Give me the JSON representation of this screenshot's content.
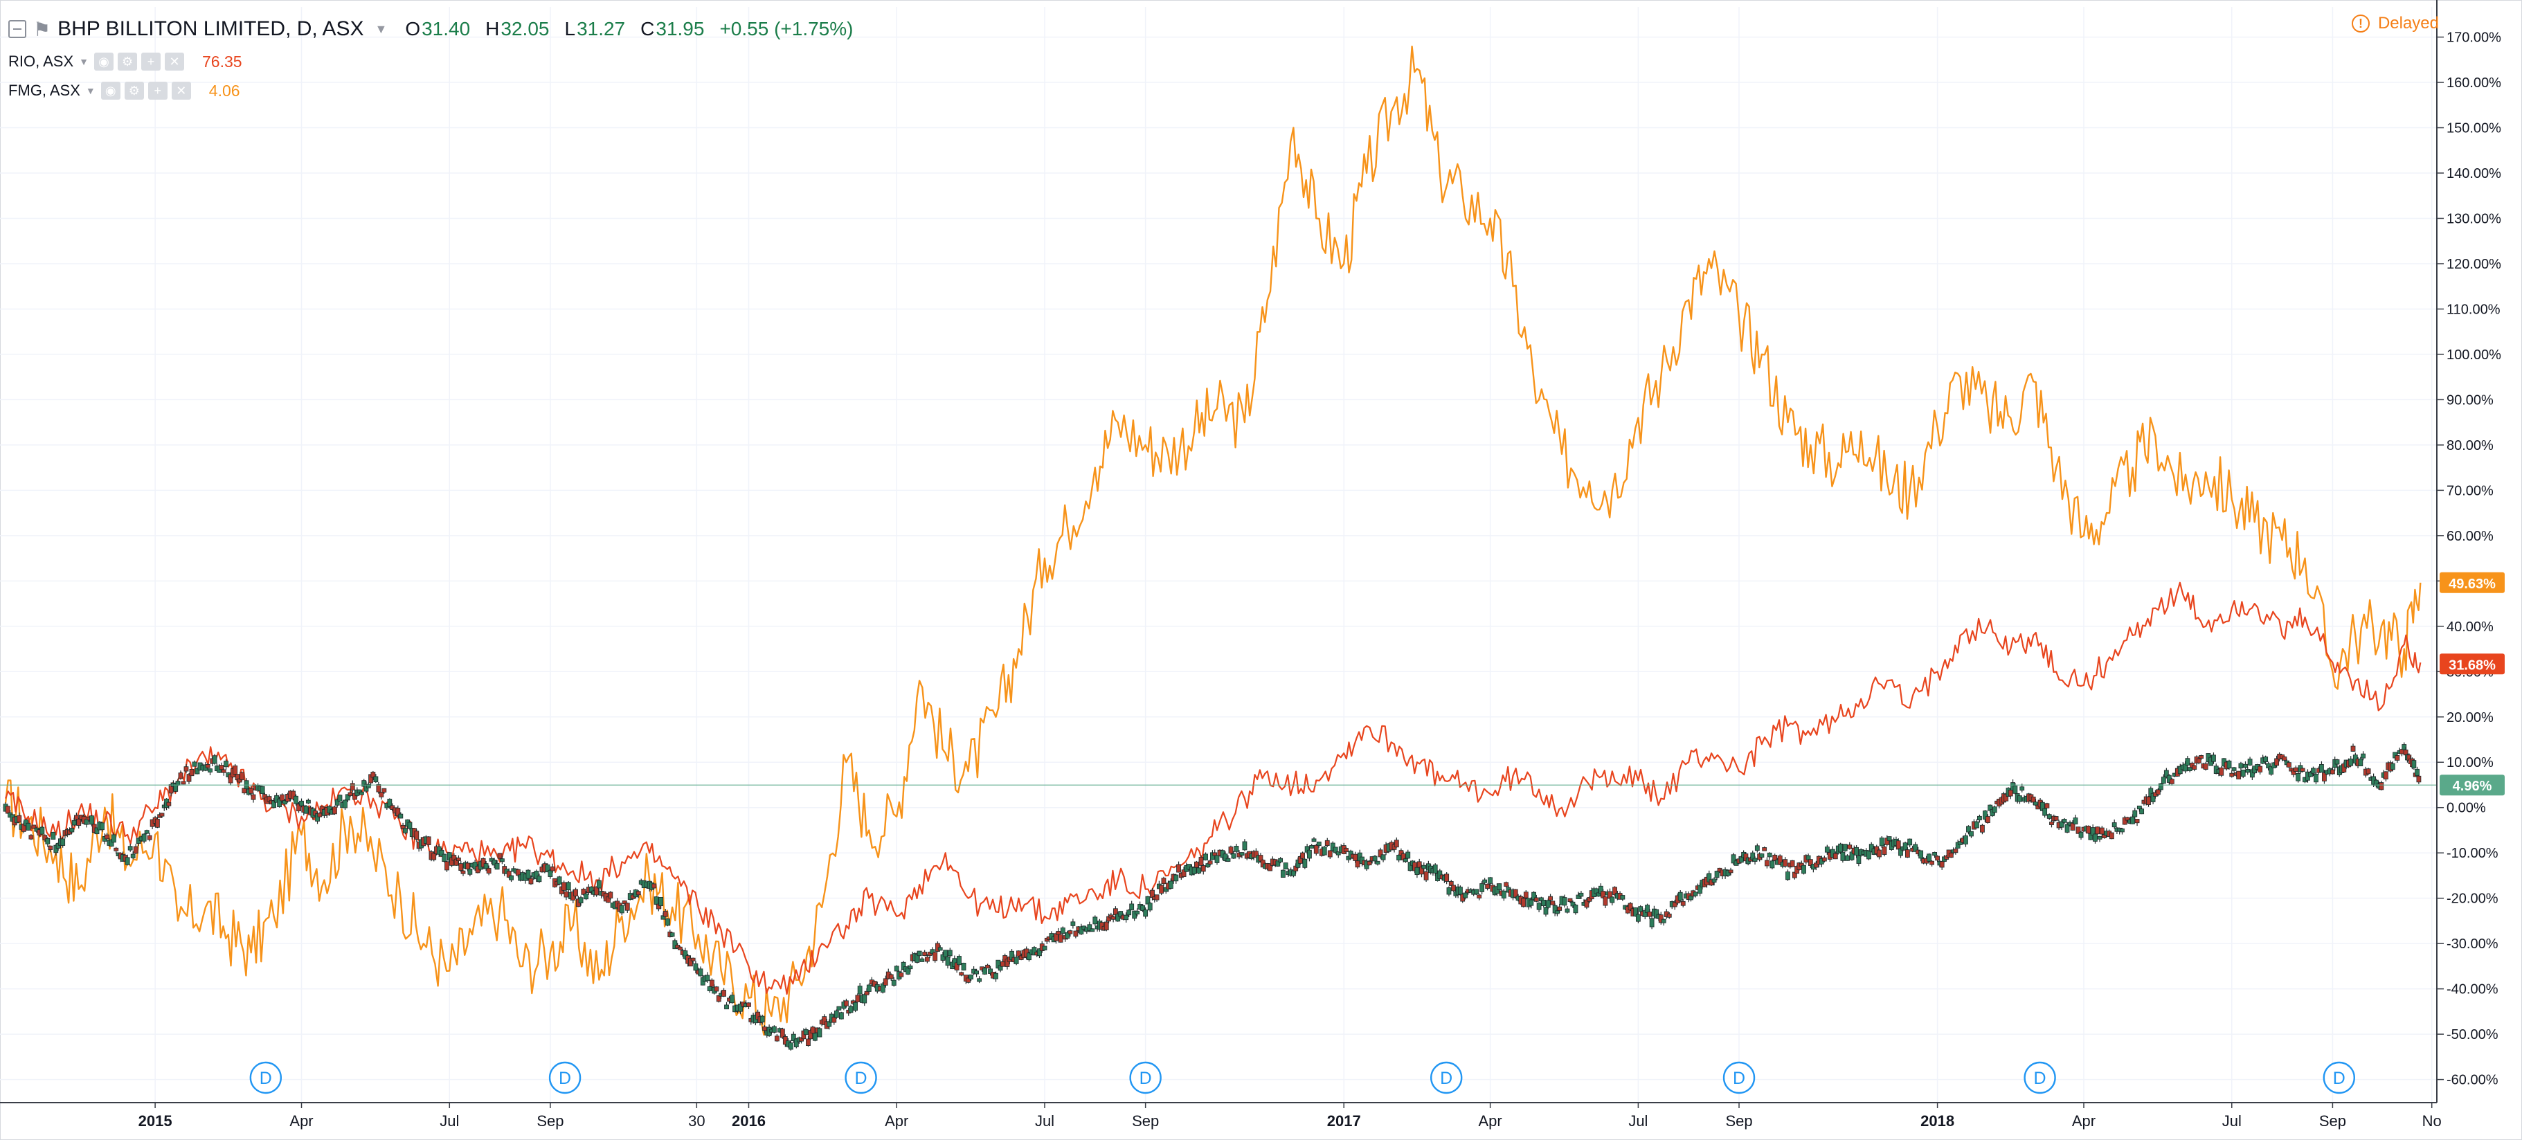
{
  "header": {
    "symbol_title": "BHP BILLITON LIMITED, D, ASX",
    "ohlc": [
      {
        "key": "O",
        "value": "31.40"
      },
      {
        "key": "H",
        "value": "32.05"
      },
      {
        "key": "L",
        "value": "31.27"
      },
      {
        "key": "C",
        "value": "31.95"
      }
    ],
    "change": "+0.55 (+1.75%)"
  },
  "compare": [
    {
      "symbol": "RIO, ASX",
      "last": "76.35",
      "color": "#e8451e"
    },
    {
      "symbol": "FMG, ASX",
      "last": "4.06",
      "color": "#f7931a"
    }
  ],
  "status": {
    "delayed_label": "Delayed",
    "icon": "info-circle-icon"
  },
  "icons": {
    "collapse": "minus-square-icon",
    "flag": "flag-icon",
    "caret": "caret-down-icon"
  },
  "colors": {
    "up": "#2e7d5b",
    "down": "#b23a2d",
    "rio": "#e8451e",
    "fmg": "#f7931a",
    "baseline": "#5aa98a",
    "dividend": "#2196f3"
  },
  "chart_data": {
    "type": "line",
    "title": "BHP BILLITON LIMITED, D, ASX",
    "y_unit": "percent change",
    "y_range": [
      -65,
      175
    ],
    "y_ticks": [
      "170.00%",
      "160.00%",
      "150.00%",
      "140.00%",
      "130.00%",
      "120.00%",
      "110.00%",
      "100.00%",
      "90.00%",
      "80.00%",
      "70.00%",
      "60.00%",
      "50.00%",
      "40.00%",
      "30.00%",
      "20.00%",
      "10.00%",
      "0.00%",
      "-10.00%",
      "-20.00%",
      "-30.00%",
      "-40.00%",
      "-50.00%",
      "-60.00%"
    ],
    "x_ticks": [
      "2015",
      "Apr",
      "Jul",
      "Sep",
      "30",
      "2016",
      "Apr",
      "Jul",
      "Sep",
      "2017",
      "Apr",
      "Jul",
      "Sep",
      "2018",
      "Apr",
      "Jul",
      "Sep",
      "No"
    ],
    "grid": true,
    "legend_position": "top-left",
    "last_value_labels": [
      {
        "text": "49.63%",
        "value": 49.63,
        "color": "#f7931a"
      },
      {
        "text": "31.68%",
        "value": 31.68,
        "color": "#e8451e"
      },
      {
        "text": "4.96%",
        "value": 4.96,
        "color": "#5aa98a"
      }
    ],
    "dividend_marker_label": "D",
    "dividend_markers_x": [
      "2015-03-10",
      "2015-09-10",
      "2016-03-10",
      "2016-09-01",
      "2017-03-05",
      "2017-09-01",
      "2018-03-05",
      "2018-09-05"
    ],
    "series": [
      {
        "name": "BHP BILLITON LIMITED",
        "style": "candles",
        "x": [
          "2014-10-01",
          "2014-10-15",
          "2014-11-01",
          "2014-11-15",
          "2014-12-01",
          "2014-12-15",
          "2015-01-01",
          "2015-01-15",
          "2015-02-01",
          "2015-02-15",
          "2015-03-01",
          "2015-03-15",
          "2015-04-01",
          "2015-04-15",
          "2015-05-01",
          "2015-05-15",
          "2015-06-01",
          "2015-06-15",
          "2015-07-01",
          "2015-07-15",
          "2015-08-01",
          "2015-08-15",
          "2015-09-01",
          "2015-09-15",
          "2015-10-01",
          "2015-10-15",
          "2015-11-01",
          "2015-11-15",
          "2015-12-01",
          "2015-12-15",
          "2016-01-01",
          "2016-01-15",
          "2016-02-01",
          "2016-02-15",
          "2016-03-01",
          "2016-03-15",
          "2016-04-01",
          "2016-04-15",
          "2016-05-01",
          "2016-05-15",
          "2016-06-01",
          "2016-06-15",
          "2016-07-01",
          "2016-07-15",
          "2016-08-01",
          "2016-08-15",
          "2016-09-01",
          "2016-09-15",
          "2016-10-01",
          "2016-10-15",
          "2016-11-01",
          "2016-11-15",
          "2016-12-01",
          "2016-12-15",
          "2017-01-01",
          "2017-01-15",
          "2017-02-01",
          "2017-02-15",
          "2017-03-01",
          "2017-03-15",
          "2017-04-01",
          "2017-04-15",
          "2017-05-01",
          "2017-05-15",
          "2017-06-01",
          "2017-06-15",
          "2017-07-01",
          "2017-07-15",
          "2017-08-01",
          "2017-08-15",
          "2017-09-01",
          "2017-09-15",
          "2017-10-01",
          "2017-10-15",
          "2017-11-01",
          "2017-11-15",
          "2017-12-01",
          "2017-12-15",
          "2018-01-01",
          "2018-01-15",
          "2018-02-01",
          "2018-02-15",
          "2018-03-01",
          "2018-03-15",
          "2018-04-01",
          "2018-04-15",
          "2018-05-01",
          "2018-05-15",
          "2018-06-01",
          "2018-06-15",
          "2018-07-01",
          "2018-07-15",
          "2018-08-01",
          "2018-08-15",
          "2018-09-01",
          "2018-09-15",
          "2018-10-01",
          "2018-10-15",
          "2018-10-25"
        ],
        "values": [
          0,
          -5,
          -8,
          -2,
          -6,
          -11,
          -4,
          6,
          10,
          8,
          4,
          2,
          1,
          -2,
          3,
          6,
          -3,
          -8,
          -12,
          -14,
          -12,
          -16,
          -14,
          -20,
          -18,
          -22,
          -16,
          -28,
          -36,
          -42,
          -45,
          -50,
          -52,
          -48,
          -44,
          -40,
          -37,
          -33,
          -32,
          -37,
          -36,
          -33,
          -31,
          -27,
          -26,
          -24,
          -22,
          -16,
          -13,
          -11,
          -9,
          -12,
          -14,
          -8,
          -10,
          -12,
          -9,
          -13,
          -15,
          -20,
          -17,
          -19,
          -21,
          -22,
          -20,
          -19,
          -23,
          -25,
          -19,
          -16,
          -12,
          -10,
          -14,
          -12,
          -9,
          -11,
          -8,
          -9,
          -12,
          -8,
          -2,
          4,
          2,
          -3,
          -5,
          -6,
          -3,
          4,
          9,
          10,
          8,
          9,
          10,
          7,
          8,
          12,
          5,
          14,
          5
        ]
      },
      {
        "name": "RIO, ASX",
        "style": "line",
        "x": [
          "2014-10-01",
          "2014-10-15",
          "2014-11-01",
          "2014-11-15",
          "2014-12-01",
          "2014-12-15",
          "2015-01-01",
          "2015-01-15",
          "2015-02-01",
          "2015-02-15",
          "2015-03-01",
          "2015-03-15",
          "2015-04-01",
          "2015-04-15",
          "2015-05-01",
          "2015-05-15",
          "2015-06-01",
          "2015-06-15",
          "2015-07-01",
          "2015-07-15",
          "2015-08-01",
          "2015-08-15",
          "2015-09-01",
          "2015-09-15",
          "2015-10-01",
          "2015-10-15",
          "2015-11-01",
          "2015-11-15",
          "2015-12-01",
          "2015-12-15",
          "2016-01-01",
          "2016-01-15",
          "2016-02-01",
          "2016-02-15",
          "2016-03-01",
          "2016-03-15",
          "2016-04-01",
          "2016-04-15",
          "2016-05-01",
          "2016-05-15",
          "2016-06-01",
          "2016-06-15",
          "2016-07-01",
          "2016-07-15",
          "2016-08-01",
          "2016-08-15",
          "2016-09-01",
          "2016-09-15",
          "2016-10-01",
          "2016-10-15",
          "2016-11-01",
          "2016-11-15",
          "2016-12-01",
          "2016-12-15",
          "2017-01-01",
          "2017-01-15",
          "2017-02-01",
          "2017-02-15",
          "2017-03-01",
          "2017-03-15",
          "2017-04-01",
          "2017-04-15",
          "2017-05-01",
          "2017-05-15",
          "2017-06-01",
          "2017-06-15",
          "2017-07-01",
          "2017-07-15",
          "2017-08-01",
          "2017-08-15",
          "2017-09-01",
          "2017-09-15",
          "2017-10-01",
          "2017-10-15",
          "2017-11-01",
          "2017-11-15",
          "2017-12-01",
          "2017-12-15",
          "2018-01-01",
          "2018-01-15",
          "2018-02-01",
          "2018-02-15",
          "2018-03-01",
          "2018-03-15",
          "2018-04-01",
          "2018-04-15",
          "2018-05-01",
          "2018-05-15",
          "2018-06-01",
          "2018-06-15",
          "2018-07-01",
          "2018-07-15",
          "2018-08-01",
          "2018-08-15",
          "2018-09-01",
          "2018-09-15",
          "2018-10-01",
          "2018-10-15",
          "2018-10-25"
        ],
        "values": [
          2,
          -2,
          -6,
          -1,
          -3,
          -6,
          0,
          6,
          11,
          9,
          4,
          0,
          -2,
          0,
          4,
          2,
          -4,
          -8,
          -10,
          -9,
          -12,
          -8,
          -11,
          -14,
          -16,
          -12,
          -10,
          -15,
          -22,
          -27,
          -35,
          -40,
          -38,
          -30,
          -26,
          -20,
          -24,
          -17,
          -10,
          -20,
          -23,
          -20,
          -24,
          -21,
          -19,
          -16,
          -18,
          -15,
          -11,
          -5,
          2,
          8,
          5,
          6,
          12,
          18,
          14,
          10,
          6,
          5,
          3,
          7,
          4,
          0,
          5,
          8,
          6,
          2,
          10,
          12,
          8,
          14,
          18,
          16,
          20,
          24,
          28,
          22,
          30,
          38,
          40,
          35,
          38,
          30,
          27,
          32,
          38,
          44,
          47,
          40,
          44,
          45,
          38,
          42,
          32,
          28,
          22,
          36,
          32
        ]
      },
      {
        "name": "FMG, ASX",
        "style": "line",
        "x": [
          "2014-10-01",
          "2014-10-15",
          "2014-11-01",
          "2014-11-15",
          "2014-12-01",
          "2014-12-15",
          "2015-01-01",
          "2015-01-15",
          "2015-02-01",
          "2015-02-15",
          "2015-03-01",
          "2015-03-15",
          "2015-04-01",
          "2015-04-15",
          "2015-05-01",
          "2015-05-15",
          "2015-06-01",
          "2015-06-15",
          "2015-07-01",
          "2015-07-15",
          "2015-08-01",
          "2015-08-15",
          "2015-09-01",
          "2015-09-15",
          "2015-10-01",
          "2015-10-15",
          "2015-11-01",
          "2015-11-15",
          "2015-12-01",
          "2015-12-15",
          "2016-01-01",
          "2016-01-15",
          "2016-02-01",
          "2016-02-15",
          "2016-03-01",
          "2016-03-15",
          "2016-04-01",
          "2016-04-15",
          "2016-05-01",
          "2016-05-15",
          "2016-06-01",
          "2016-06-15",
          "2016-07-01",
          "2016-07-15",
          "2016-08-01",
          "2016-08-15",
          "2016-09-01",
          "2016-09-15",
          "2016-10-01",
          "2016-10-15",
          "2016-11-01",
          "2016-11-15",
          "2016-12-01",
          "2016-12-15",
          "2017-01-01",
          "2017-01-15",
          "2017-02-01",
          "2017-02-15",
          "2017-03-01",
          "2017-03-15",
          "2017-04-01",
          "2017-04-15",
          "2017-05-01",
          "2017-05-15",
          "2017-06-01",
          "2017-06-15",
          "2017-07-01",
          "2017-07-15",
          "2017-08-01",
          "2017-08-15",
          "2017-09-01",
          "2017-09-15",
          "2017-10-01",
          "2017-10-15",
          "2017-11-01",
          "2017-11-15",
          "2017-12-01",
          "2017-12-15",
          "2018-01-01",
          "2018-01-15",
          "2018-02-01",
          "2018-02-15",
          "2018-03-01",
          "2018-03-15",
          "2018-04-01",
          "2018-04-15",
          "2018-05-01",
          "2018-05-15",
          "2018-06-01",
          "2018-06-15",
          "2018-07-01",
          "2018-07-15",
          "2018-08-01",
          "2018-08-15",
          "2018-09-01",
          "2018-09-15",
          "2018-10-01",
          "2018-10-15",
          "2018-10-25"
        ],
        "values": [
          1,
          -3,
          -10,
          -18,
          0,
          -12,
          -6,
          -25,
          -22,
          -28,
          -32,
          -24,
          -6,
          -16,
          -2,
          -10,
          -20,
          -30,
          -36,
          -28,
          -22,
          -35,
          -32,
          -26,
          -38,
          -24,
          -16,
          -22,
          -28,
          -36,
          -42,
          -46,
          -38,
          -22,
          10,
          -5,
          -2,
          28,
          12,
          8,
          20,
          35,
          55,
          62,
          75,
          85,
          80,
          78,
          83,
          88,
          85,
          112,
          150,
          130,
          120,
          140,
          155,
          163,
          140,
          135,
          130,
          115,
          90,
          78,
          72,
          70,
          86,
          95,
          112,
          119,
          108,
          100,
          85,
          80,
          76,
          83,
          72,
          70,
          84,
          95,
          88,
          86,
          94,
          75,
          60,
          65,
          75,
          82,
          70,
          74,
          68,
          63,
          59,
          55,
          30,
          38,
          40,
          35,
          49.63
        ]
      }
    ]
  }
}
